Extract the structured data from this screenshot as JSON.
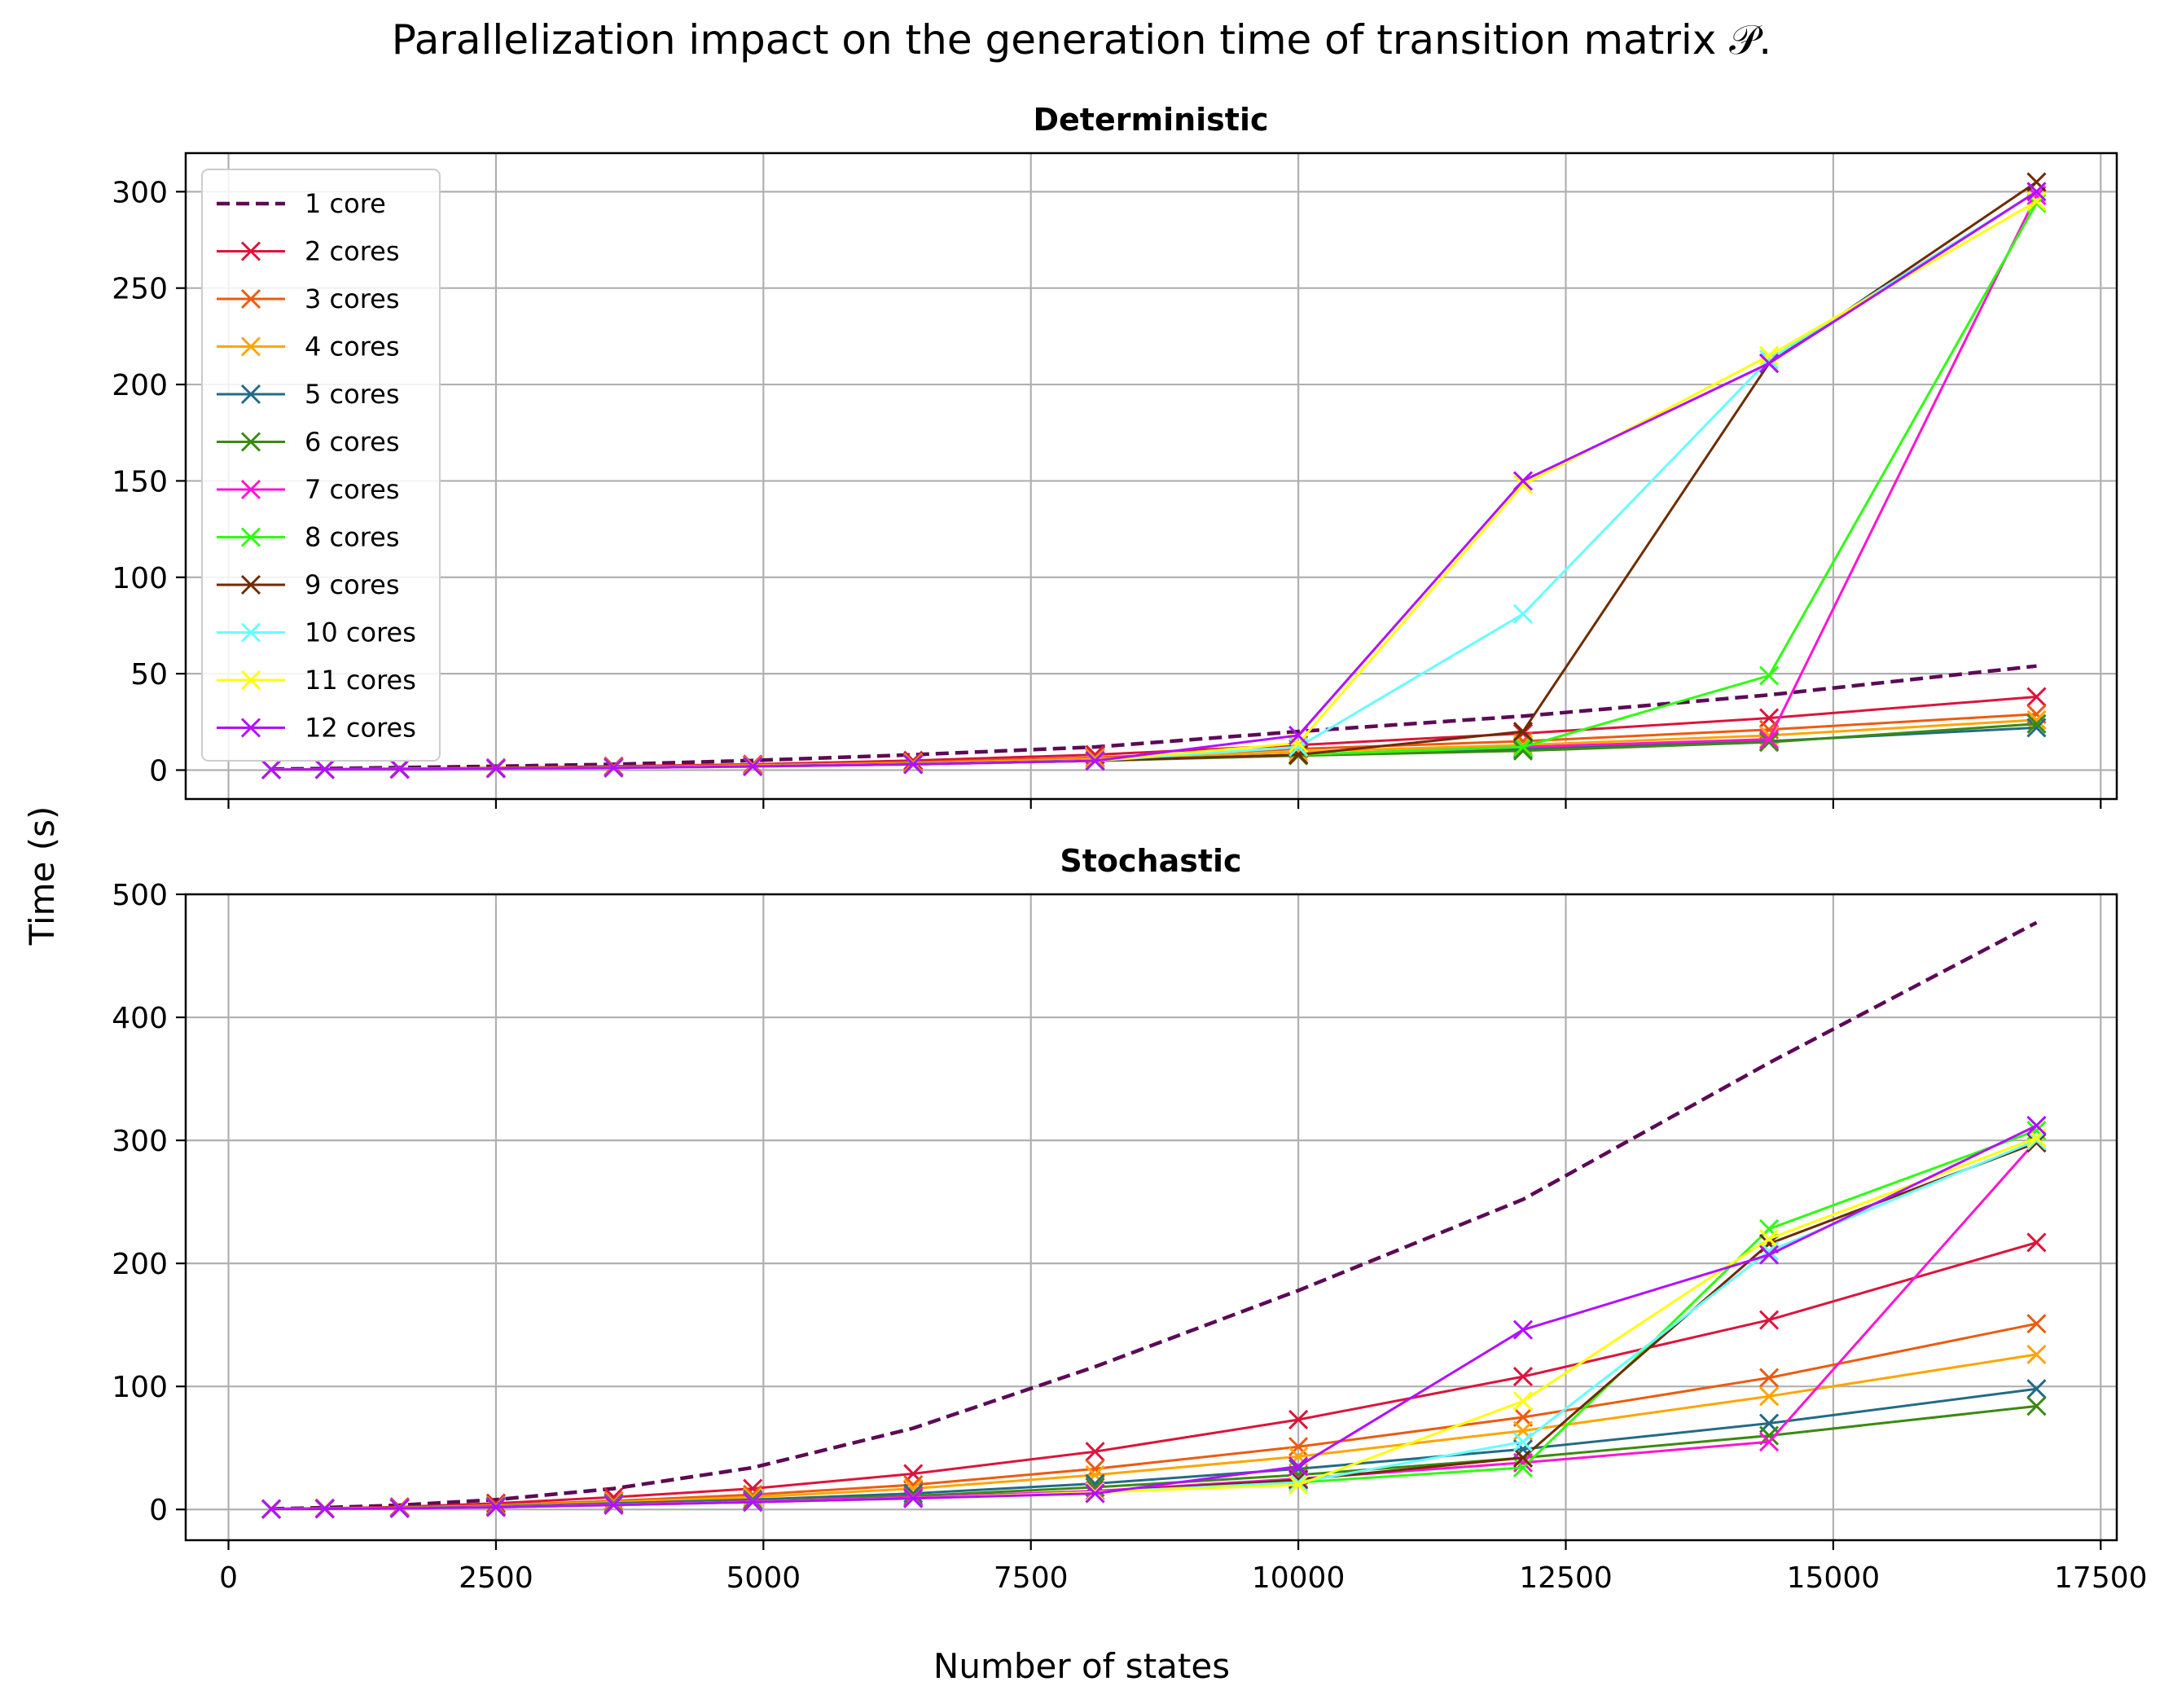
{
  "figure": {
    "title": "Parallelization impact on the generation time of transition matrix 𝒫.",
    "ylabel": "Time (s)",
    "xlabel": "Number of states"
  },
  "chart_data": [
    {
      "type": "line",
      "title": "Deterministic",
      "xlabel": "Number of states",
      "ylabel": "Time (s)",
      "xlim": [
        -400,
        17650
      ],
      "ylim": [
        -15,
        320
      ],
      "xticks": [
        0,
        2500,
        5000,
        7500,
        10000,
        12500,
        15000,
        17500
      ],
      "yticks": [
        0,
        50,
        100,
        150,
        200,
        250,
        300
      ],
      "grid": true,
      "legend": "top-left",
      "x": [
        400,
        900,
        1600,
        2500,
        3600,
        4900,
        6400,
        8100,
        10000,
        12100,
        14400,
        16900
      ],
      "series": [
        {
          "name": "1 core",
          "color": "#5c0a56",
          "dashed": true,
          "markers": false,
          "values": [
            0.5,
            0.8,
            1.3,
            2,
            3,
            5,
            8,
            12,
            20,
            28,
            39,
            54
          ]
        },
        {
          "name": "2 cores",
          "color": "#dc143c",
          "values": [
            0.3,
            0.5,
            0.8,
            1.2,
            2,
            3,
            5,
            8,
            13,
            19,
            27,
            38
          ]
        },
        {
          "name": "3 cores",
          "color": "#ec5b0f",
          "values": [
            0.3,
            0.4,
            0.7,
            1,
            1.6,
            2.6,
            4,
            6.5,
            11,
            15,
            21,
            29
          ]
        },
        {
          "name": "4 cores",
          "color": "#ffa500",
          "values": [
            0.3,
            0.4,
            0.6,
            0.9,
            1.4,
            2.3,
            3.6,
            5.8,
            9.5,
            13,
            18,
            26
          ]
        },
        {
          "name": "5 cores",
          "color": "#236b85",
          "values": [
            0.3,
            0.4,
            0.6,
            0.8,
            1.3,
            2,
            3.2,
            5,
            8,
            11,
            15,
            22
          ]
        },
        {
          "name": "6 cores",
          "color": "#3a8a12",
          "values": [
            0.3,
            0.4,
            0.5,
            0.8,
            1.2,
            1.9,
            3,
            4.8,
            7.5,
            10,
            14.5,
            24
          ]
        },
        {
          "name": "7 cores",
          "color": "#ff14d2",
          "values": [
            0.3,
            0.4,
            0.5,
            0.8,
            1.2,
            1.9,
            3,
            4.8,
            8,
            12,
            16,
            298
          ]
        },
        {
          "name": "8 cores",
          "color": "#2dff0f",
          "values": [
            0.3,
            0.4,
            0.5,
            0.8,
            1.2,
            1.9,
            3,
            4.8,
            8,
            12,
            49,
            294
          ]
        },
        {
          "name": "9 cores",
          "color": "#6e2c00",
          "values": [
            0.3,
            0.4,
            0.5,
            0.8,
            1.2,
            1.9,
            3,
            4.8,
            8,
            20,
            211,
            305
          ]
        },
        {
          "name": "10 cores",
          "color": "#66ffff",
          "values": [
            0.3,
            0.4,
            0.5,
            0.8,
            1.2,
            1.9,
            3,
            4.8,
            12,
            81,
            213,
            300
          ]
        },
        {
          "name": "11 cores",
          "color": "#ffff0a",
          "values": [
            0.3,
            0.4,
            0.5,
            0.8,
            1.2,
            1.9,
            3,
            4.8,
            14,
            148,
            215,
            295
          ]
        },
        {
          "name": "12 cores",
          "color": "#b30fff",
          "values": [
            0.3,
            0.4,
            0.5,
            0.8,
            1.2,
            1.9,
            3,
            4.8,
            18,
            150,
            211,
            300
          ]
        }
      ]
    },
    {
      "type": "line",
      "title": "Stochastic",
      "xlabel": "Number of states",
      "ylabel": "Time (s)",
      "xlim": [
        -400,
        17650
      ],
      "ylim": [
        -25,
        500
      ],
      "xticks": [
        0,
        2500,
        5000,
        7500,
        10000,
        12500,
        15000,
        17500
      ],
      "yticks": [
        0,
        100,
        200,
        300,
        400,
        500
      ],
      "grid": true,
      "x": [
        400,
        900,
        1600,
        2500,
        3600,
        4900,
        6400,
        8100,
        10000,
        12100,
        14400,
        16900
      ],
      "series": [
        {
          "name": "1 core",
          "color": "#5c0a56",
          "dashed": true,
          "markers": false,
          "values": [
            0.5,
            1.5,
            3.5,
            8,
            17,
            34,
            66,
            116,
            178,
            252,
            363,
            477
          ]
        },
        {
          "name": "2 cores",
          "color": "#dc143c",
          "values": [
            0.5,
            1,
            2,
            5,
            10,
            17,
            29,
            47,
            73,
            108,
            154,
            217
          ]
        },
        {
          "name": "3 cores",
          "color": "#ec5b0f",
          "values": [
            0.4,
            0.8,
            1.5,
            3.5,
            7,
            12,
            20,
            33,
            51,
            75,
            107,
            151
          ]
        },
        {
          "name": "4 cores",
          "color": "#ffa500",
          "values": [
            0.4,
            0.7,
            1.3,
            3,
            6,
            10,
            17,
            28,
            43,
            64,
            92,
            126
          ]
        },
        {
          "name": "5 cores",
          "color": "#236b85",
          "values": [
            0.3,
            0.6,
            1.1,
            2.5,
            5,
            8,
            13,
            21,
            33,
            49,
            70,
            98
          ]
        },
        {
          "name": "6 cores",
          "color": "#3a8a12",
          "values": [
            0.3,
            0.5,
            1,
            2.2,
            4.2,
            7,
            11,
            18,
            28,
            42,
            60,
            84
          ]
        },
        {
          "name": "7 cores",
          "color": "#ff14d2",
          "values": [
            0.3,
            0.5,
            1,
            2,
            4,
            6.5,
            10,
            15,
            25,
            38,
            55,
            300
          ]
        },
        {
          "name": "8 cores",
          "color": "#2dff0f",
          "values": [
            0.3,
            0.5,
            0.9,
            1.8,
            3.6,
            6,
            9,
            14,
            22,
            34,
            228,
            308
          ]
        },
        {
          "name": "9 cores",
          "color": "#6e2c00",
          "values": [
            0.3,
            0.5,
            0.9,
            1.8,
            3.6,
            6,
            9,
            14,
            24,
            42,
            216,
            298
          ]
        },
        {
          "name": "10 cores",
          "color": "#66ffff",
          "values": [
            0.3,
            0.5,
            0.9,
            1.8,
            3.6,
            6,
            9,
            14,
            22,
            55,
            210,
            300
          ]
        },
        {
          "name": "11 cores",
          "color": "#ffff0a",
          "values": [
            0.3,
            0.5,
            0.9,
            1.8,
            3.6,
            6,
            9,
            14,
            20,
            88,
            220,
            302
          ]
        },
        {
          "name": "12 cores",
          "color": "#b30fff",
          "values": [
            0.3,
            0.5,
            0.9,
            1.8,
            3.6,
            6,
            9,
            13,
            35,
            146,
            207,
            312
          ]
        }
      ]
    }
  ]
}
